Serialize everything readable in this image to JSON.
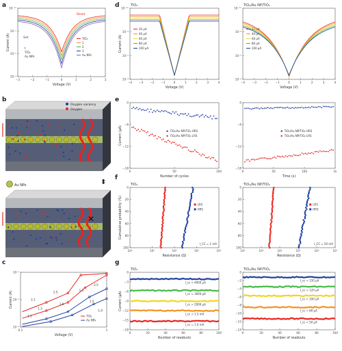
{
  "colors": {
    "red": "#e8231f",
    "blue": "#1f3fa0",
    "green": "#49b848",
    "yellow": "#f2d61c",
    "orange": "#f39221",
    "purple": "#8a5bb0",
    "gray": "#9a9a9a",
    "lightblue": "#6e9ad6"
  },
  "panel_letters": {
    "a": "a",
    "b": "b",
    "c": "c",
    "d": "d",
    "e": "e",
    "f": "f",
    "g": "g"
  },
  "device_labels": {
    "oxygen_vacancy": "Oxygen vacancy",
    "oxygen": "Oxygen",
    "np_legend": "Au NPs"
  },
  "chart_data": [
    {
      "id": "a",
      "type": "line",
      "title": "",
      "xlabel": "Voltage (V)",
      "ylabel": "Current (A)",
      "xlim": [
        -3,
        3
      ],
      "ylim_exp": [
        -12,
        -3
      ],
      "x_ticks": [
        "−3",
        "−2",
        "−1",
        "0",
        "1",
        "2",
        "3"
      ],
      "y_ticks": [
        "10⁻¹²",
        "10⁻⁹",
        "10⁻⁶",
        "10⁻³"
      ],
      "annotations": [
        "Set",
        "Reset",
        "t",
        "TiO₂",
        "Au NPs"
      ],
      "legend": [
        "TiO₂",
        "1",
        "2",
        "3",
        "Au NPs"
      ],
      "series": [
        {
          "name": "TiO₂",
          "color": "red",
          "depth": 6.2
        },
        {
          "name": "1",
          "color": "orange",
          "depth": 6.6
        },
        {
          "name": "2",
          "color": "green",
          "depth": 7.0
        },
        {
          "name": "3",
          "color": "blue",
          "depth": 7.5
        },
        {
          "name": "Au NPs",
          "color": "purple",
          "depth": 8.0
        }
      ]
    },
    {
      "id": "d1",
      "type": "line",
      "title": "TiO₂",
      "xlabel": "Voltage (V)",
      "ylabel": "Current (A)",
      "xlim": [
        -4,
        4
      ],
      "x_ticks": [
        "−4",
        "−3",
        "−2",
        "−1",
        "0",
        "1",
        "2",
        "3",
        "4"
      ],
      "y_ticks": [
        "10⁻¹⁰",
        "10⁻⁸",
        "10⁻⁶",
        "10⁻⁴"
      ],
      "legend": [
        "20 µA",
        "40 µA",
        "60 µA",
        "80 µA",
        "100 µA"
      ],
      "compliance_colors": [
        "red",
        "orange",
        "yellow",
        "green",
        "blue"
      ]
    },
    {
      "id": "d2",
      "type": "line",
      "title": "TiO₂/Au NP/TiO₂",
      "xlabel": "Voltage (V)",
      "ylabel": "",
      "xlim": [
        -4,
        4
      ],
      "x_ticks": [
        "−4",
        "−3",
        "−2",
        "−1",
        "0",
        "1",
        "2",
        "3",
        "4"
      ],
      "y_ticks": [
        "10⁻¹⁰",
        "10⁻⁸",
        "10⁻⁶",
        "10⁻⁴"
      ],
      "legend": [
        "20 µA",
        "40 µA",
        "60 µA",
        "80 µA",
        "100 µA"
      ],
      "compliance_colors": [
        "red",
        "orange",
        "yellow",
        "green",
        "blue"
      ]
    },
    {
      "id": "e1",
      "type": "scatter",
      "xlabel": "Number of cycles",
      "ylabel": "Current (µA)",
      "xlim": [
        0,
        100
      ],
      "ylim": [
        -18,
        0
      ],
      "x_ticks": [
        "0",
        "50",
        "100"
      ],
      "y_ticks": [
        "0",
        "−6",
        "−12",
        "−18"
      ],
      "series": [
        {
          "name": "TiO₂/Au NP/TiO₂ HRS",
          "color": "blue"
        },
        {
          "name": "TiO₂/Au NP/TiO₂ LRS",
          "color": "red"
        }
      ]
    },
    {
      "id": "e2",
      "type": "scatter",
      "xlabel": "Time (s)",
      "ylabel": "",
      "xlim": [
        0,
        1000
      ],
      "ylim": [
        -18,
        0
      ],
      "x_ticks": [
        "0",
        "50",
        "100",
        "1k"
      ],
      "y_ticks": [
        "0",
        "−6",
        "−12",
        "−18"
      ],
      "series": [
        {
          "name": "TiO₂/Au NP/TiO₂ HRS",
          "color": "blue"
        },
        {
          "name": "TiO₂/Au NP/TiO₂ LRS",
          "color": "red"
        }
      ]
    },
    {
      "id": "f1",
      "type": "scatter",
      "title": "TiO₂",
      "xlabel": "Resistance (Ω)",
      "ylabel": "Cumulative probability (%)",
      "ylim": [
        0,
        100
      ],
      "y_ticks": [
        "0",
        "20",
        "40",
        "60",
        "80",
        "100"
      ],
      "x_ticks": [
        "10²",
        "10³",
        "10⁴",
        "10⁵",
        "10⁶"
      ],
      "legend": [
        "LRS",
        "HRS"
      ],
      "note": "I_CC = 1 mA"
    },
    {
      "id": "f2",
      "type": "scatter",
      "title": "TiO₂/Au NP/TiO₂",
      "xlabel": "Resistance (Ω)",
      "ylabel": "",
      "ylim": [
        0,
        100
      ],
      "y_ticks": [
        "0",
        "20",
        "40",
        "60",
        "80",
        "100"
      ],
      "x_ticks": [
        "10²",
        "10³",
        "10⁴",
        "10⁵",
        "10⁶",
        "10⁷"
      ],
      "legend": [
        "LRS",
        "HRS"
      ],
      "note": "I_CC = 50 mA"
    },
    {
      "id": "c",
      "type": "line",
      "xlabel": "Voltage (V)",
      "ylabel": "Current (A)",
      "x_ticks": [
        "0.1",
        "1"
      ],
      "y_ticks": [
        "10⁻⁸",
        "10⁻⁶",
        "10⁻⁴"
      ],
      "slope_labels": [
        "2.1",
        "2.5",
        "1.3",
        "1.0",
        "1.1",
        "1.5",
        "2.5",
        "1.5",
        "1.0"
      ],
      "legend": [
        "TiO₂",
        "Au NPs"
      ],
      "series_colors": [
        "red",
        "blue"
      ]
    },
    {
      "id": "g1",
      "type": "line",
      "title": "TiO₂",
      "xlabel": "Number of readouts",
      "ylabel": "Current (µA)",
      "xlim": [
        0,
        100
      ],
      "ylim": [
        -18,
        0
      ],
      "x_ticks": [
        "0",
        "20",
        "40",
        "60",
        "80",
        "100"
      ],
      "y_ticks": [
        "0",
        "−3",
        "−6",
        "−9",
        "−12",
        "−15",
        "−18"
      ],
      "levels": [
        {
          "label": "I_cc = 4000 µA",
          "value": -2.1,
          "color": "blue"
        },
        {
          "label": "I_cc = 3000 µA",
          "value": -5.7,
          "color": "green"
        },
        {
          "label": "I_cc = 2000 µA",
          "value": -9.0,
          "color": "yellow"
        },
        {
          "label": "I_cc = 1.5 mA",
          "value": -12.0,
          "color": "orange"
        },
        {
          "label": "I_cc = 1.0 mA",
          "value": -15.3,
          "color": "red"
        }
      ]
    },
    {
      "id": "g2",
      "type": "line",
      "title": "TiO₂/Au NP/TiO₂",
      "xlabel": "Number of readouts",
      "ylabel": "",
      "xlim": [
        0,
        100
      ],
      "ylim": [
        -14,
        0
      ],
      "x_ticks": [
        "0",
        "20",
        "40",
        "60",
        "80",
        "100"
      ],
      "y_ticks": [
        "0",
        "−2",
        "−4",
        "−6",
        "−8",
        "−10",
        "−12",
        "−14"
      ],
      "levels": [
        {
          "label": "I_cc = 150 µA",
          "value": -1.2,
          "color": "blue"
        },
        {
          "label": "I_cc = 120 µA",
          "value": -3.5,
          "color": "green"
        },
        {
          "label": "I_cc = 100 µA",
          "value": -5.7,
          "color": "yellow"
        },
        {
          "label": "I_cc = 80 µA",
          "value": -8.5,
          "color": "orange"
        },
        {
          "label": "I_cc = 50 µA",
          "value": -11.3,
          "color": "red"
        }
      ]
    }
  ]
}
